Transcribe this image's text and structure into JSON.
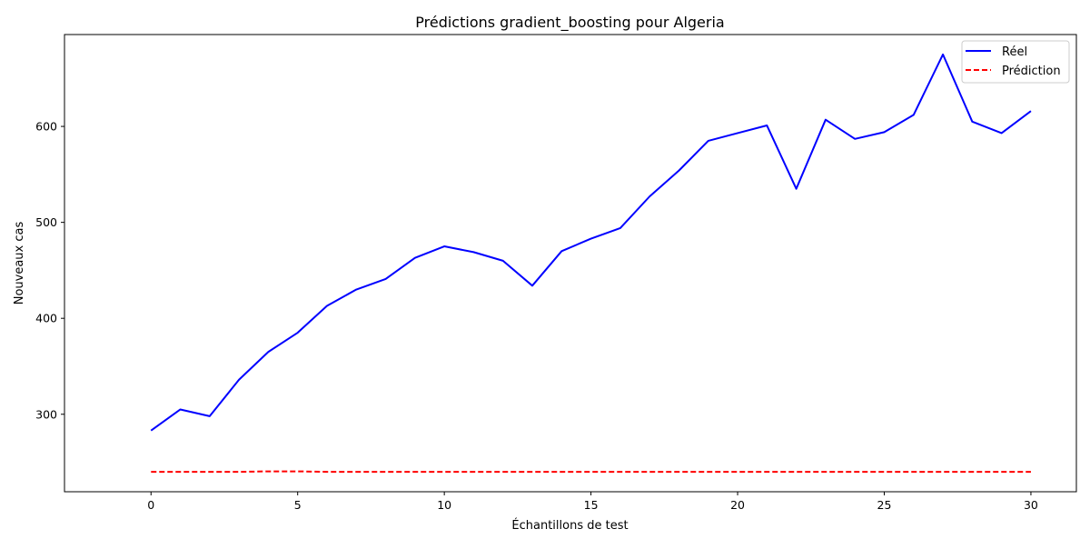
{
  "chart_data": {
    "type": "line",
    "title": "Prédictions gradient_boosting pour Algeria",
    "xlabel": "Échantillons de test",
    "ylabel": "Nouveaux cas",
    "x": [
      0,
      1,
      2,
      3,
      4,
      5,
      6,
      7,
      8,
      9,
      10,
      11,
      12,
      13,
      14,
      15,
      16,
      17,
      18,
      19,
      20,
      21,
      22,
      23,
      24,
      25,
      26,
      27,
      28,
      29,
      30
    ],
    "series": [
      {
        "name": "Réel",
        "color": "#0000ff",
        "style": "solid",
        "values": [
          283,
          305,
          298,
          336,
          365,
          385,
          413,
          430,
          441,
          463,
          475,
          469,
          460,
          434,
          470,
          483,
          494,
          527,
          554,
          585,
          593,
          601,
          535,
          607,
          587,
          594,
          612,
          675,
          605,
          593,
          616
        ]
      },
      {
        "name": "Prédiction",
        "color": "#ff0000",
        "style": "dashed",
        "values": [
          240,
          240,
          240,
          240,
          240.5,
          240.5,
          240,
          240,
          240,
          240,
          240,
          240,
          240,
          240,
          240,
          240,
          240,
          240,
          240,
          240,
          240,
          240,
          240,
          240,
          240,
          240,
          240,
          240,
          240,
          240,
          240
        ]
      }
    ],
    "xlim": [
      -2.95,
      31.55
    ],
    "ylim": [
      219.25,
      695.75
    ],
    "xticks": [
      0,
      5,
      10,
      15,
      20,
      25,
      30
    ],
    "yticks": [
      300,
      400,
      500,
      600
    ],
    "grid": false,
    "legend": "top-right"
  }
}
